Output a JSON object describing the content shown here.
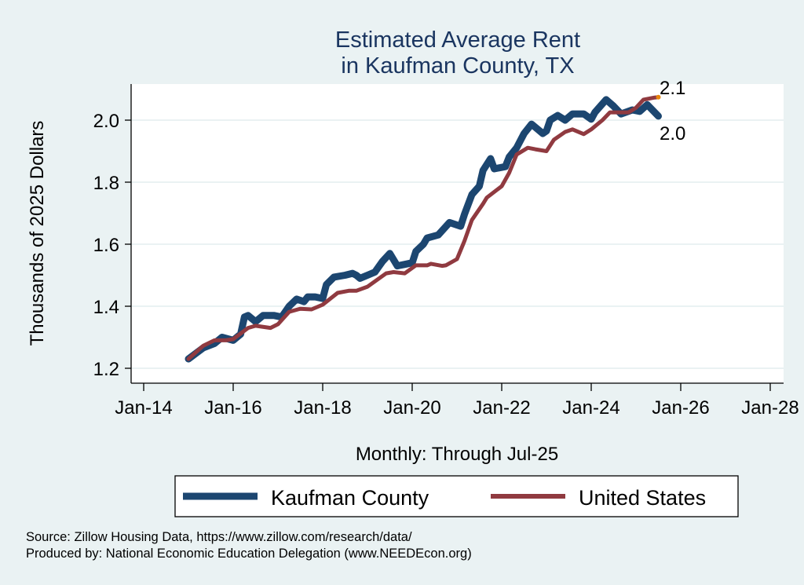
{
  "chart_data": {
    "type": "line",
    "title": [
      "Estimated Average Rent",
      "in Kaufman County, TX"
    ],
    "xlabel": "Monthly: Through Jul-25",
    "ylabel": "Thousands of 2025 Dollars",
    "xlim": [
      "2013-11",
      "2028-03"
    ],
    "ylim": [
      1.16,
      2.12
    ],
    "x_ticks": [
      {
        "date": "2014-01",
        "label": "Jan-14"
      },
      {
        "date": "2016-01",
        "label": "Jan-16"
      },
      {
        "date": "2018-01",
        "label": "Jan-18"
      },
      {
        "date": "2020-01",
        "label": "Jan-20"
      },
      {
        "date": "2022-01",
        "label": "Jan-22"
      },
      {
        "date": "2024-01",
        "label": "Jan-24"
      },
      {
        "date": "2026-01",
        "label": "Jan-26"
      },
      {
        "date": "2028-01",
        "label": "Jan-28"
      }
    ],
    "y_ticks": [
      {
        "value": 1.2,
        "label": "1.2"
      },
      {
        "value": 1.4,
        "label": "1.4"
      },
      {
        "value": 1.6,
        "label": "1.6"
      },
      {
        "value": 1.8,
        "label": "1.8"
      },
      {
        "value": 2.0,
        "label": "2.0"
      }
    ],
    "grid": "horizontal",
    "legend_position": "bottom",
    "series": [
      {
        "name": "Kaufman County",
        "color": "#1c4670",
        "end_label": "2.0",
        "points": [
          [
            "2015-01",
            1.23
          ],
          [
            "2015-05",
            1.266
          ],
          [
            "2015-08",
            1.28
          ],
          [
            "2015-10",
            1.3
          ],
          [
            "2016-01",
            1.29
          ],
          [
            "2016-03",
            1.31
          ],
          [
            "2016-04",
            1.365
          ],
          [
            "2016-05",
            1.37
          ],
          [
            "2016-07",
            1.35
          ],
          [
            "2016-09",
            1.37
          ],
          [
            "2016-12",
            1.37
          ],
          [
            "2017-02",
            1.365
          ],
          [
            "2017-04",
            1.4
          ],
          [
            "2017-06",
            1.423
          ],
          [
            "2017-08",
            1.415
          ],
          [
            "2017-09",
            1.43
          ],
          [
            "2017-11",
            1.43
          ],
          [
            "2018-01",
            1.425
          ],
          [
            "2018-02",
            1.47
          ],
          [
            "2018-04",
            1.494
          ],
          [
            "2018-07",
            1.5
          ],
          [
            "2018-09",
            1.506
          ],
          [
            "2018-10",
            1.5
          ],
          [
            "2018-11",
            1.49
          ],
          [
            "2019-01",
            1.5
          ],
          [
            "2019-03",
            1.51
          ],
          [
            "2019-05",
            1.544
          ],
          [
            "2019-07",
            1.57
          ],
          [
            "2019-09",
            1.53
          ],
          [
            "2019-11",
            1.535
          ],
          [
            "2020-01",
            1.54
          ],
          [
            "2020-02",
            1.577
          ],
          [
            "2020-04",
            1.6
          ],
          [
            "2020-05",
            1.62
          ],
          [
            "2020-08",
            1.63
          ],
          [
            "2020-11",
            1.67
          ],
          [
            "2021-02",
            1.658
          ],
          [
            "2021-03",
            1.696
          ],
          [
            "2021-05",
            1.76
          ],
          [
            "2021-07",
            1.787
          ],
          [
            "2021-08",
            1.838
          ],
          [
            "2021-10",
            1.876
          ],
          [
            "2021-11",
            1.843
          ],
          [
            "2022-02",
            1.85
          ],
          [
            "2022-03",
            1.881
          ],
          [
            "2022-05",
            1.911
          ],
          [
            "2022-07",
            1.957
          ],
          [
            "2022-09",
            1.987
          ],
          [
            "2022-10",
            1.977
          ],
          [
            "2022-12",
            1.957
          ],
          [
            "2023-01",
            1.965
          ],
          [
            "2023-02",
            2.0
          ],
          [
            "2023-04",
            2.015
          ],
          [
            "2023-06",
            2.0
          ],
          [
            "2023-08",
            2.02
          ],
          [
            "2023-11",
            2.02
          ],
          [
            "2024-01",
            2.003
          ],
          [
            "2024-02",
            2.025
          ],
          [
            "2024-05",
            2.066
          ],
          [
            "2024-07",
            2.045
          ],
          [
            "2024-09",
            2.02
          ],
          [
            "2024-12",
            2.033
          ],
          [
            "2025-02",
            2.028
          ],
          [
            "2025-04",
            2.05
          ],
          [
            "2025-07",
            2.013
          ]
        ]
      },
      {
        "name": "United States",
        "color": "#903a40",
        "end_marker_color": "#e8850c",
        "end_label": "2.1",
        "points": [
          [
            "2015-01",
            1.23
          ],
          [
            "2015-05",
            1.273
          ],
          [
            "2015-08",
            1.29
          ],
          [
            "2015-11",
            1.29
          ],
          [
            "2016-01",
            1.294
          ],
          [
            "2016-05",
            1.33
          ],
          [
            "2016-07",
            1.337
          ],
          [
            "2016-11",
            1.33
          ],
          [
            "2017-01",
            1.342
          ],
          [
            "2017-04",
            1.382
          ],
          [
            "2017-07",
            1.392
          ],
          [
            "2017-10",
            1.39
          ],
          [
            "2018-01",
            1.405
          ],
          [
            "2018-05",
            1.443
          ],
          [
            "2018-08",
            1.45
          ],
          [
            "2018-10",
            1.45
          ],
          [
            "2019-01",
            1.463
          ],
          [
            "2019-06",
            1.506
          ],
          [
            "2019-08",
            1.51
          ],
          [
            "2019-11",
            1.506
          ],
          [
            "2020-02",
            1.532
          ],
          [
            "2020-05",
            1.532
          ],
          [
            "2020-06",
            1.537
          ],
          [
            "2020-09",
            1.53
          ],
          [
            "2020-10",
            1.532
          ],
          [
            "2021-01",
            1.552
          ],
          [
            "2021-03",
            1.61
          ],
          [
            "2021-05",
            1.678
          ],
          [
            "2021-08",
            1.73
          ],
          [
            "2021-09",
            1.75
          ],
          [
            "2022-01",
            1.787
          ],
          [
            "2022-03",
            1.83
          ],
          [
            "2022-05",
            1.889
          ],
          [
            "2022-08",
            1.911
          ],
          [
            "2022-10",
            1.906
          ],
          [
            "2023-01",
            1.9
          ],
          [
            "2023-03",
            1.937
          ],
          [
            "2023-06",
            1.962
          ],
          [
            "2023-08",
            1.97
          ],
          [
            "2023-11",
            1.955
          ],
          [
            "2024-01",
            1.97
          ],
          [
            "2024-04",
            2.0
          ],
          [
            "2024-06",
            2.025
          ],
          [
            "2024-09",
            2.025
          ],
          [
            "2024-11",
            2.025
          ],
          [
            "2025-01",
            2.04
          ],
          [
            "2025-03",
            2.066
          ],
          [
            "2025-06",
            2.073
          ],
          [
            "2025-07",
            2.074
          ]
        ]
      }
    ]
  },
  "footer": {
    "source": "Source: Zillow Housing Data, https://www.zillow.com/research/data/",
    "produced_by": "Produced by: National Economic Education Delegation (www.NEEDEcon.org)"
  }
}
